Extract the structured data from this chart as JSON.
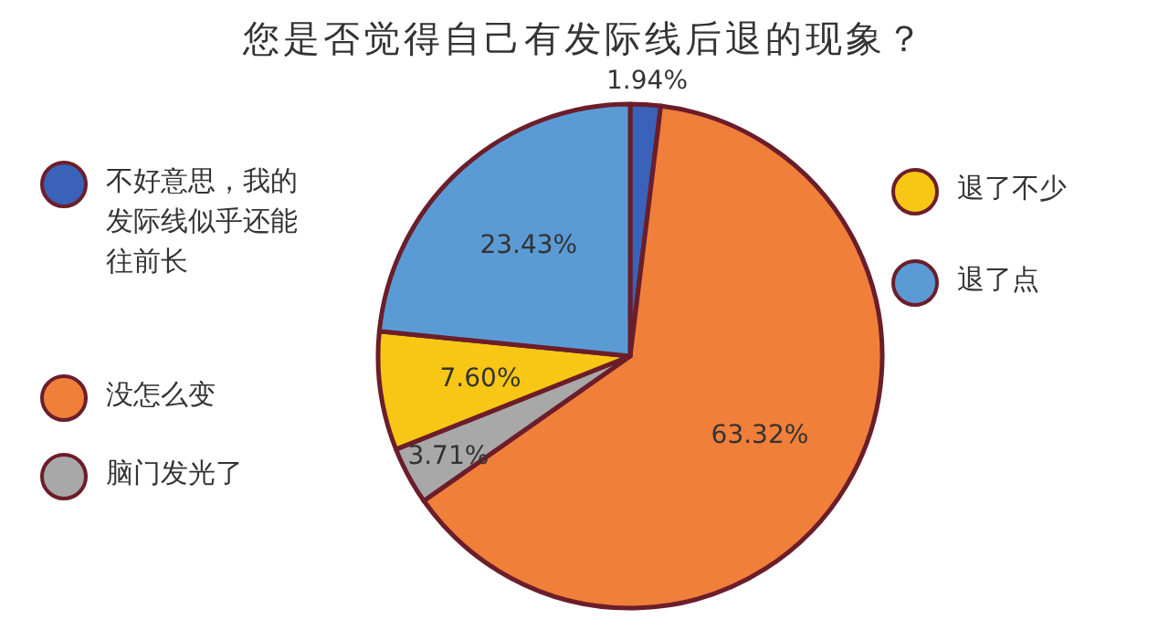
{
  "chart_data": {
    "type": "pie",
    "title": "您是否觉得自己有发际线后退的现象？",
    "categories": [
      "不好意思，我的发际线似乎还能往前长",
      "没怎么变",
      "脑门发光了",
      "退了不少",
      "退了点"
    ],
    "values": [
      1.94,
      63.32,
      3.71,
      7.6,
      23.43
    ],
    "value_labels": [
      "1.94%",
      "63.32%",
      "3.71%",
      "7.60%",
      "23.43%"
    ],
    "colors": [
      "#3a62b8",
      "#f07f3a",
      "#a8a8a8",
      "#f8c614",
      "#5b9bd5"
    ],
    "legend": "left"
  }
}
